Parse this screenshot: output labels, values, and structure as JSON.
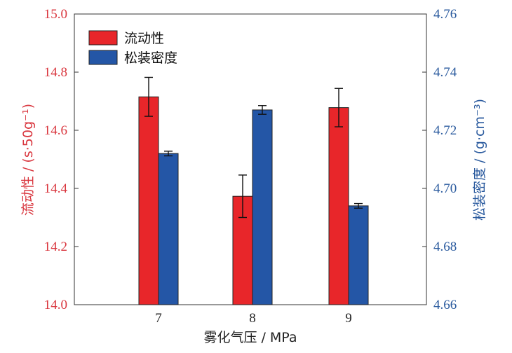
{
  "chart_data": {
    "type": "bar",
    "categories": [
      "7",
      "8",
      "9"
    ],
    "xlabel": "雾化气压 / MPa",
    "y_left": {
      "label": "流动性 / (s·50g⁻¹)",
      "lim": [
        14.0,
        15.0
      ],
      "ticks": [
        "14.0",
        "14.2",
        "14.4",
        "14.6",
        "14.8",
        "15.0"
      ],
      "color": "#d9363e"
    },
    "y_right": {
      "label": "松装密度 / (g·cm⁻³)",
      "lim": [
        4.66,
        4.76
      ],
      "ticks": [
        "4.66",
        "4.68",
        "4.70",
        "4.72",
        "4.74",
        "4.76"
      ],
      "color": "#2a5a9e"
    },
    "series": [
      {
        "name": "流动性",
        "axis": "left",
        "color": "#e8262a",
        "values": [
          14.715,
          14.373,
          14.678
        ],
        "errors": [
          0.067,
          0.073,
          0.066
        ]
      },
      {
        "name": "松装密度",
        "axis": "right",
        "color": "#2456a6",
        "values": [
          4.712,
          4.727,
          4.694
        ],
        "errors": [
          0.0008,
          0.0015,
          0.0008
        ]
      }
    ],
    "legend": "top-left",
    "grid": false
  }
}
